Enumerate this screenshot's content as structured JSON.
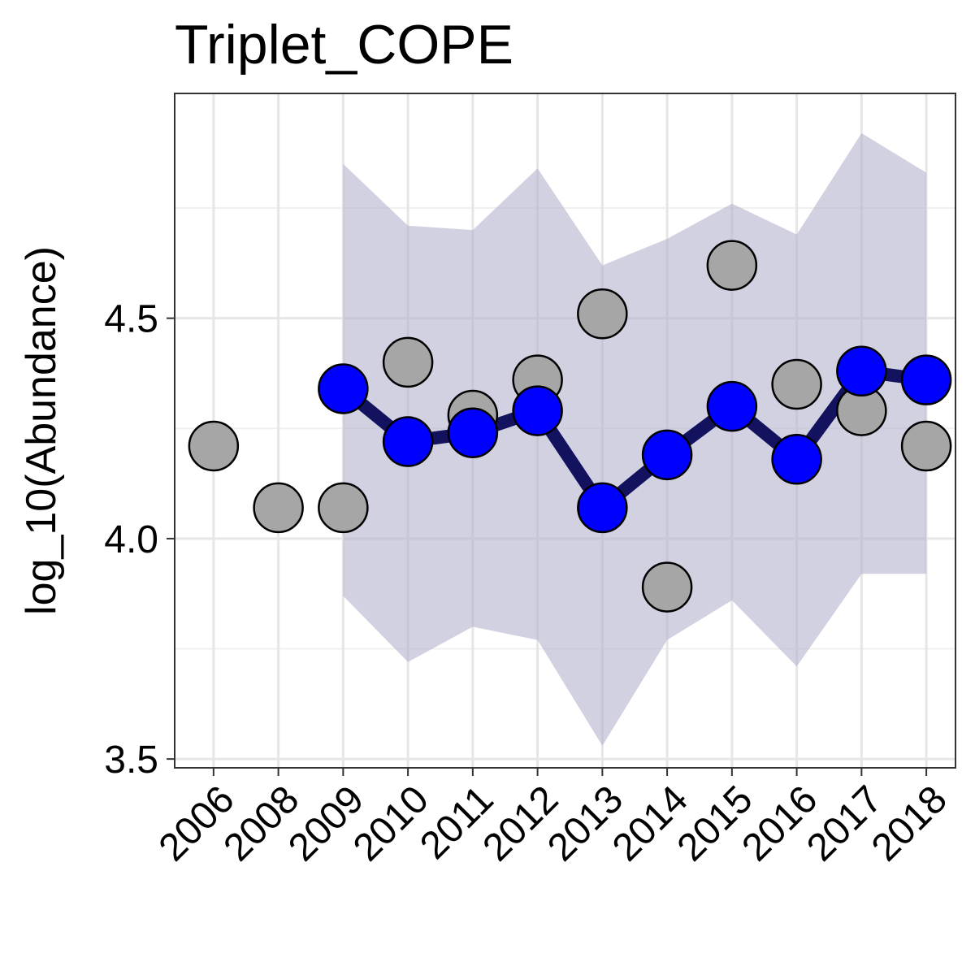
{
  "chart_data": {
    "type": "line",
    "title": "Triplet_COPE",
    "xlabel": "",
    "ylabel": "log_10(Abundance)",
    "categories": [
      "2006",
      "2008",
      "2009",
      "2010",
      "2011",
      "2012",
      "2013",
      "2014",
      "2015",
      "2016",
      "2017",
      "2018"
    ],
    "ylim": [
      3.48,
      5.01
    ],
    "y_ticks": [
      3.5,
      4.0,
      4.5
    ],
    "y_tick_labels": [
      "3.5",
      "4.0",
      "4.5"
    ],
    "grid": true,
    "series": [
      {
        "kind": "observed",
        "style": "points",
        "x": [
          "2006",
          "2008",
          "2009",
          "2010",
          "2011",
          "2012",
          "2013",
          "2014",
          "2015",
          "2016",
          "2017",
          "2018"
        ],
        "values": [
          4.21,
          4.07,
          4.07,
          4.4,
          4.28,
          4.36,
          4.51,
          3.89,
          4.62,
          4.35,
          4.29,
          4.21
        ]
      },
      {
        "kind": "fitted",
        "style": "line+points",
        "x": [
          "2009",
          "2010",
          "2011",
          "2012",
          "2013",
          "2014",
          "2015",
          "2016",
          "2017",
          "2018"
        ],
        "values": [
          4.34,
          4.22,
          4.24,
          4.29,
          4.07,
          4.19,
          4.3,
          4.18,
          4.38,
          4.36
        ],
        "band_lower": [
          3.87,
          3.72,
          3.8,
          3.77,
          3.53,
          3.77,
          3.86,
          3.71,
          3.92,
          3.92
        ],
        "band_upper": [
          4.85,
          4.71,
          4.7,
          4.84,
          4.62,
          4.68,
          4.76,
          4.69,
          4.92,
          4.83
        ]
      }
    ],
    "colors": {
      "observed_fill": "#a6a6a6",
      "fitted_fill": "#0000ff",
      "fitted_line": "#12125e",
      "band_fill": "#b3b3cf"
    }
  }
}
